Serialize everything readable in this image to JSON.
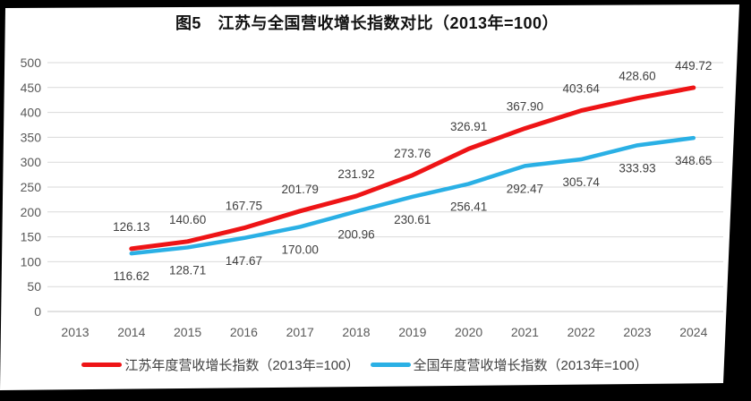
{
  "title": "图5　江苏与全国营收增长指数对比（2013年=100）",
  "chart_data": {
    "type": "line",
    "categories": [
      "2013",
      "2014",
      "2015",
      "2016",
      "2017",
      "2018",
      "2019",
      "2020",
      "2021",
      "2022",
      "2023",
      "2024"
    ],
    "series": [
      {
        "name": "江苏年度营收增长指数（2013年=100）",
        "color": "#EE1416",
        "stroke_width": 5,
        "label_offset": -20,
        "values": [
          null,
          126.13,
          140.6,
          167.75,
          201.79,
          231.92,
          273.76,
          326.91,
          367.9,
          403.64,
          428.6,
          449.72
        ]
      },
      {
        "name": "全国年度营收增长指数（2013年=100）",
        "color": "#2AB0E5",
        "stroke_width": 4.5,
        "label_offset": 30,
        "values": [
          null,
          116.62,
          128.71,
          147.67,
          170.0,
          200.96,
          230.61,
          256.41,
          292.47,
          305.74,
          333.93,
          348.65
        ]
      }
    ],
    "ylim": [
      0,
      500
    ],
    "yticks": [
      0,
      50,
      100,
      150,
      200,
      250,
      300,
      350,
      400,
      450,
      500
    ],
    "grid": true,
    "legend_position": "bottom",
    "value_label_decimals": 2
  },
  "colors": {
    "gridline": "#D9D9D9",
    "zero_line": "#C6C6C6",
    "tick_label": "#595959",
    "data_label": "#3F3F3F",
    "title_text": "#111111",
    "page_background": "#FFFFFF",
    "frame_background": "#000000"
  }
}
